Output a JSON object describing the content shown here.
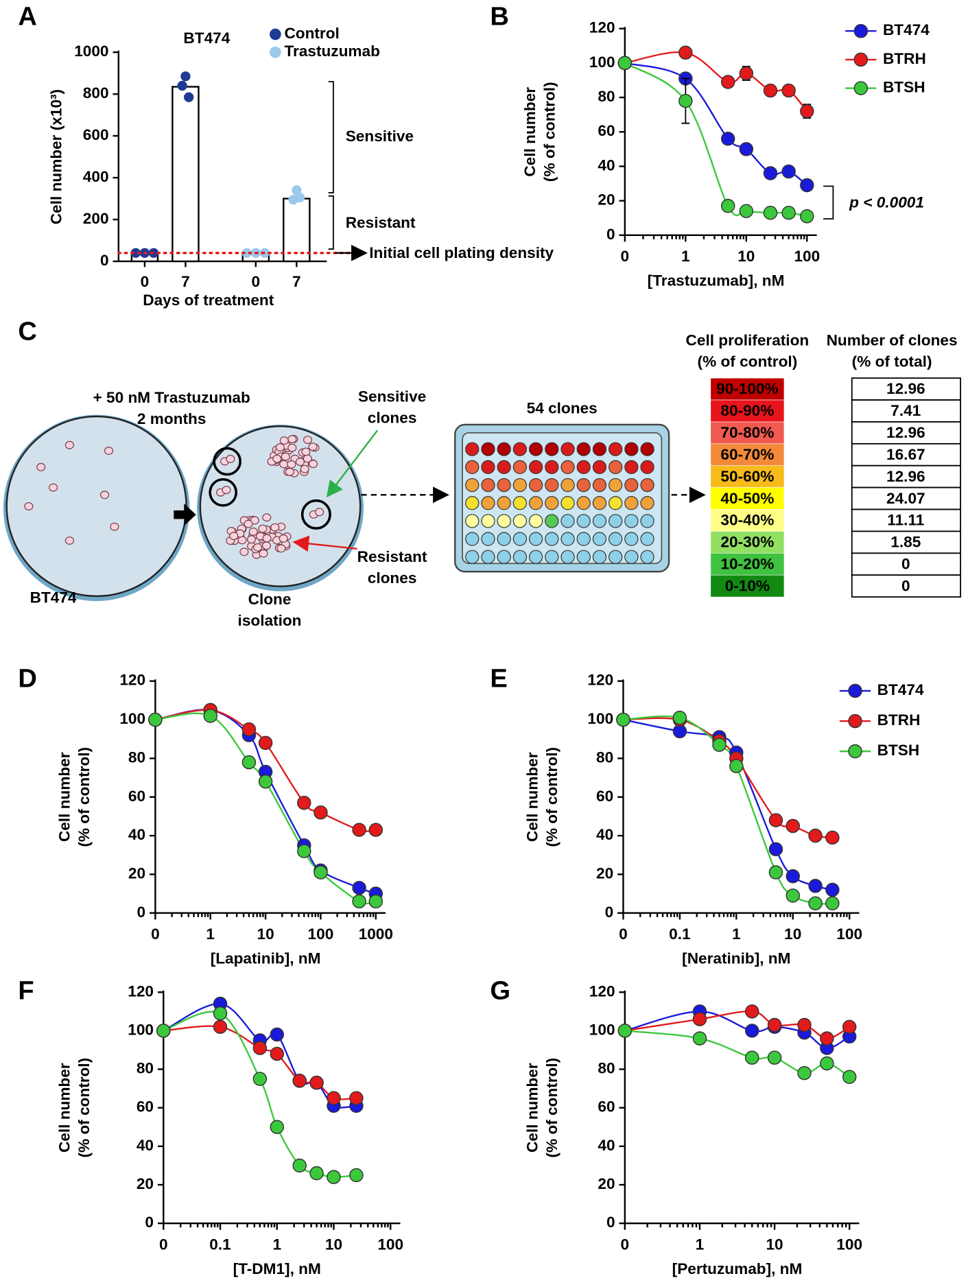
{
  "chart_data": [
    {
      "panel": "A",
      "type": "bar",
      "title": "BT474",
      "xlabel": "Days of treatment",
      "ylabel": [
        "Cell number (x10³)"
      ],
      "categories": [
        "0",
        "7",
        "0",
        "7"
      ],
      "series": [
        {
          "name": "Control",
          "color": "#1f3a93",
          "values": [
            40,
            835,
            null,
            null
          ],
          "points": [
            [
              40,
              40,
              40
            ],
            [
              840,
              885,
              785
            ],
            null,
            null
          ]
        },
        {
          "name": "Trastuzumab",
          "color": "#9cc8ea",
          "values": [
            null,
            null,
            40,
            300
          ],
          "points": [
            null,
            null,
            [
              40,
              40,
              40
            ],
            [
              295,
              340,
              305
            ]
          ]
        }
      ],
      "ylim": [
        0,
        1000
      ],
      "yticks": [
        0,
        200,
        400,
        600,
        800,
        1000
      ],
      "reference_line": {
        "value": 40,
        "label": "Initial cell plating density",
        "color": "#e31a1c"
      },
      "annotations": [
        "Sensitive",
        "Resistant"
      ]
    },
    {
      "panel": "B",
      "type": "line",
      "xlabel": "[Trastuzumab], nM",
      "ylabel": [
        "Cell number",
        "(% of control)"
      ],
      "xscale": "log",
      "x": [
        0,
        1,
        5,
        10,
        25,
        50,
        100
      ],
      "series": [
        {
          "name": "BT474",
          "color": "#1a1adb",
          "values": [
            100,
            91,
            56,
            50,
            36,
            37,
            29
          ],
          "errors": [
            0,
            3,
            3,
            3,
            2,
            2,
            2
          ]
        },
        {
          "name": "BTRH",
          "color": "#e31a1c",
          "values": [
            100,
            106,
            89,
            94,
            84,
            84,
            72
          ],
          "errors": [
            0,
            2,
            2,
            4,
            2,
            2,
            4
          ]
        },
        {
          "name": "BTSH",
          "color": "#3cc83c",
          "values": [
            100,
            78,
            17,
            14,
            13,
            13,
            11
          ],
          "errors": [
            0,
            13,
            2,
            2,
            2,
            2,
            2
          ]
        }
      ],
      "xlim": [
        0,
        100
      ],
      "xticks": [
        0,
        1,
        10,
        100
      ],
      "ylim": [
        0,
        120
      ],
      "yticks": [
        0,
        20,
        40,
        60,
        80,
        100,
        120
      ],
      "legend": true,
      "annotation": "p < 0.0001"
    },
    {
      "panel": "D",
      "type": "line",
      "xlabel": "[Lapatinib], nM",
      "ylabel": [
        "Cell number",
        "(% of control)"
      ],
      "xscale": "log",
      "x": [
        0,
        1,
        5,
        10,
        50,
        100,
        500,
        1000
      ],
      "series": [
        {
          "name": "BT474",
          "color": "#1a1adb",
          "values": [
            100,
            105,
            92,
            73,
            35,
            22,
            13,
            10
          ]
        },
        {
          "name": "BTRH",
          "color": "#e31a1c",
          "values": [
            100,
            105,
            95,
            88,
            57,
            52,
            43,
            43
          ]
        },
        {
          "name": "BTSH",
          "color": "#3cc83c",
          "values": [
            100,
            102,
            78,
            68,
            32,
            21,
            6,
            6
          ]
        }
      ],
      "xlim": [
        0,
        1000
      ],
      "xticks": [
        0,
        1,
        10,
        100,
        1000
      ],
      "ylim": [
        0,
        120
      ],
      "yticks": [
        0,
        20,
        40,
        60,
        80,
        100,
        120
      ],
      "legend": false
    },
    {
      "panel": "E",
      "type": "line",
      "xlabel": "[Neratinib], nM",
      "ylabel": [
        "Cell number",
        "(% of control)"
      ],
      "xscale": "log",
      "x": [
        0,
        0.1,
        0.5,
        1,
        5,
        10,
        25,
        50
      ],
      "series": [
        {
          "name": "BT474",
          "color": "#1a1adb",
          "values": [
            100,
            94,
            91,
            83,
            33,
            19,
            14,
            12
          ]
        },
        {
          "name": "BTRH",
          "color": "#e31a1c",
          "values": [
            100,
            100,
            89,
            80,
            48,
            45,
            40,
            39
          ]
        },
        {
          "name": "BTSH",
          "color": "#3cc83c",
          "values": [
            100,
            101,
            87,
            76,
            21,
            9,
            5,
            5
          ]
        }
      ],
      "xlim": [
        0,
        100
      ],
      "xticks": [
        0,
        0.1,
        1,
        10,
        100
      ],
      "ylim": [
        0,
        120
      ],
      "yticks": [
        0,
        20,
        40,
        60,
        80,
        100,
        120
      ],
      "legend": true
    },
    {
      "panel": "F",
      "type": "line",
      "xlabel": "[T-DM1], nM",
      "ylabel": [
        "Cell number",
        "(% of control)"
      ],
      "xscale": "log",
      "x": [
        0,
        0.1,
        0.5,
        1,
        2.5,
        5,
        10,
        25
      ],
      "series": [
        {
          "name": "BT474",
          "color": "#1a1adb",
          "values": [
            100,
            114,
            95,
            98,
            74,
            73,
            61,
            61
          ]
        },
        {
          "name": "BTRH",
          "color": "#e31a1c",
          "values": [
            100,
            102,
            91,
            88,
            74,
            73,
            65,
            65
          ]
        },
        {
          "name": "BTSH",
          "color": "#3cc83c",
          "values": [
            100,
            109,
            75,
            50,
            30,
            26,
            24,
            25
          ]
        }
      ],
      "xlim": [
        0,
        100
      ],
      "xticks": [
        0,
        0.1,
        1,
        10,
        100
      ],
      "ylim": [
        0,
        120
      ],
      "yticks": [
        0,
        20,
        40,
        60,
        80,
        100,
        120
      ],
      "legend": false
    },
    {
      "panel": "G",
      "type": "line",
      "xlabel": "[Pertuzumab], nM",
      "ylabel": [
        "Cell number",
        "(% of control)"
      ],
      "xscale": "log",
      "x": [
        0,
        1,
        5,
        10,
        25,
        50,
        100
      ],
      "series": [
        {
          "name": "BT474",
          "color": "#1a1adb",
          "values": [
            100,
            110,
            100,
            102,
            99,
            91,
            97
          ]
        },
        {
          "name": "BTRH",
          "color": "#e31a1c",
          "values": [
            100,
            106,
            110,
            103,
            103,
            96,
            102
          ]
        },
        {
          "name": "BTSH",
          "color": "#3cc83c",
          "values": [
            100,
            96,
            86,
            86,
            78,
            83,
            76
          ]
        }
      ],
      "xlim": [
        0,
        100
      ],
      "xticks": [
        0,
        1,
        10,
        100
      ],
      "ylim": [
        0,
        120
      ],
      "yticks": [
        0,
        20,
        40,
        60,
        80,
        100,
        120
      ],
      "legend": false
    }
  ],
  "diagram_c": {
    "panel": "C",
    "treatment": "+ 50 nM Trastuzumab",
    "duration": "2 months",
    "sensitive": [
      "Sensitive",
      "clones"
    ],
    "resistant": [
      "Resistant",
      "clones"
    ],
    "parent": "BT474",
    "isolation": [
      "Clone",
      "isolation"
    ],
    "plate": "54 clones",
    "heatmap_header": [
      "Cell proliferation",
      "(% of control)"
    ],
    "table_header": [
      "Number of clones",
      "(% of total)"
    ],
    "bins": [
      {
        "label": "90-100%",
        "color": "#c00000"
      },
      {
        "label": "80-90%",
        "color": "#e8141b"
      },
      {
        "label": "70-80%",
        "color": "#f05a50"
      },
      {
        "label": "60-70%",
        "color": "#f28a3a"
      },
      {
        "label": "50-60%",
        "color": "#f7bb1a"
      },
      {
        "label": "40-50%",
        "color": "#ffff00"
      },
      {
        "label": "30-40%",
        "color": "#ffff88"
      },
      {
        "label": "20-30%",
        "color": "#92e063"
      },
      {
        "label": "10-20%",
        "color": "#3fc23f"
      },
      {
        "label": "0-10%",
        "color": "#128a12"
      }
    ],
    "clone_percent": [
      "12.96",
      "7.41",
      "12.96",
      "16.67",
      "12.96",
      "24.07",
      "11.11",
      "1.85",
      "0",
      "0"
    ]
  }
}
